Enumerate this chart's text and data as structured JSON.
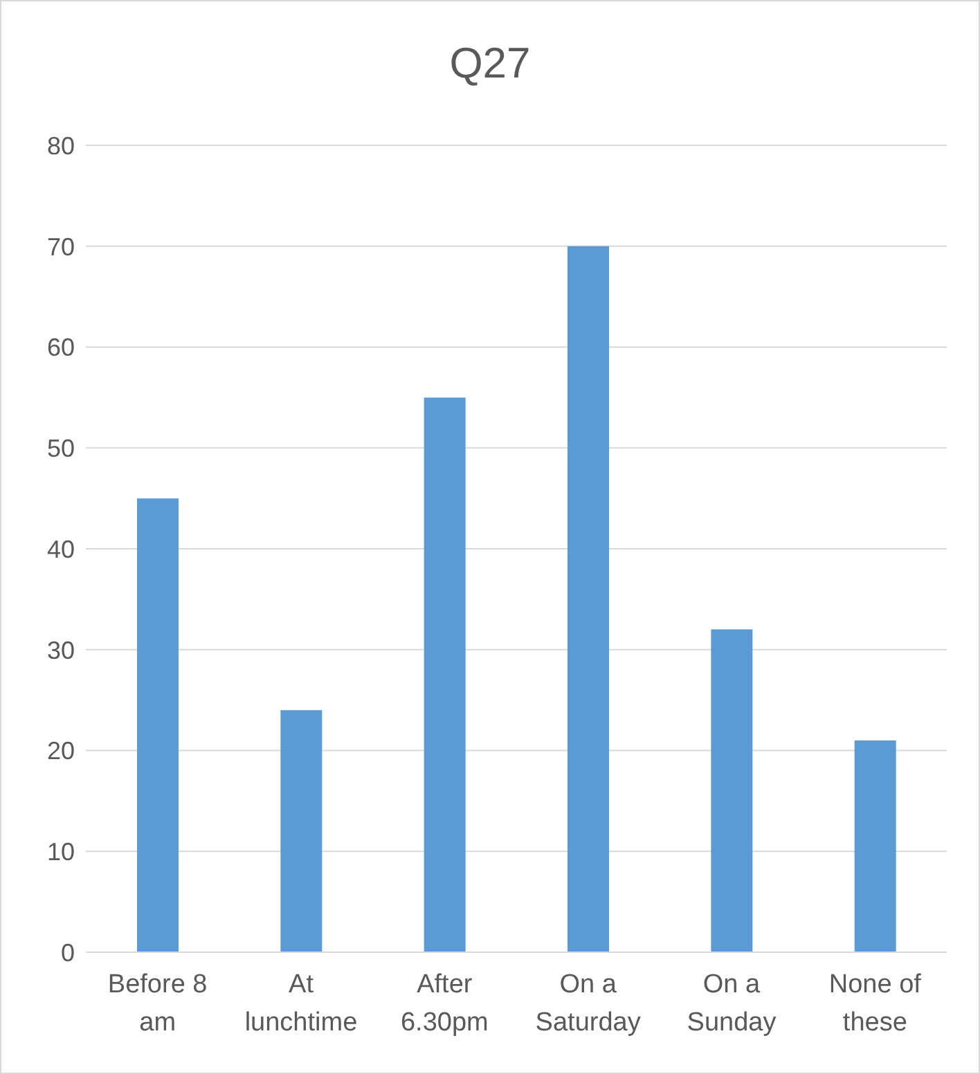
{
  "chart_data": {
    "type": "bar",
    "title": "Q27",
    "categories": [
      "Before 8 am",
      "At lunchtime",
      "After 6.30pm",
      "On a Saturday",
      "On a Sunday",
      "None of these"
    ],
    "values": [
      45,
      24,
      55,
      70,
      32,
      21
    ],
    "color": "#5b9bd5",
    "ylim": [
      0,
      80
    ],
    "yticks": [
      0,
      10,
      20,
      30,
      40,
      50,
      60,
      70,
      80
    ],
    "grid": "y"
  }
}
